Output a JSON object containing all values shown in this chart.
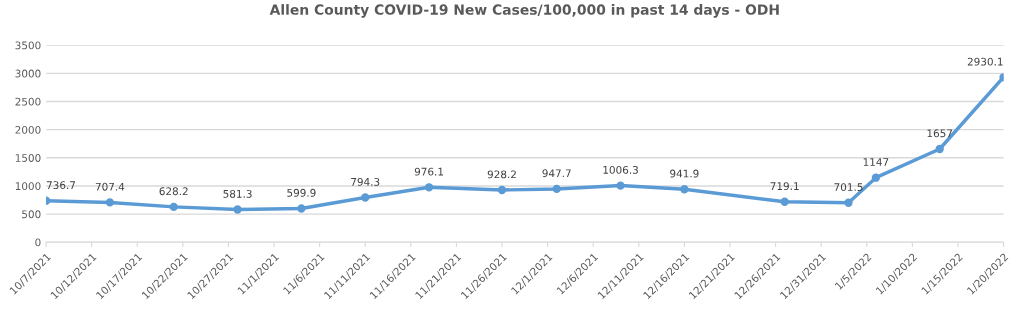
{
  "chart_data": {
    "type": "line",
    "title": "Allen County COVID-19 New Cases/100,000 in past 14 days - ODH",
    "x": [
      "2021-10-07",
      "2021-10-14",
      "2021-10-21",
      "2021-10-28",
      "2021-11-04",
      "2021-11-11",
      "2021-11-18",
      "2021-11-26",
      "2021-12-02",
      "2021-12-09",
      "2021-12-16",
      "2021-12-27",
      "2022-01-03",
      "2022-01-06",
      "2022-01-13",
      "2022-01-20"
    ],
    "series": [
      {
        "color": "#5b9bd5",
        "values": [
          736.7,
          707.4,
          628.2,
          581.3,
          599.9,
          794.3,
          976.1,
          928.2,
          947.7,
          1006.3,
          941.9,
          719.1,
          701.5,
          1147,
          1657,
          2930.1
        ]
      }
    ],
    "data_labels": true,
    "marker": "circle",
    "line_style": "solid",
    "grid": "y",
    "legend": false,
    "xlim": [
      "2021-10-07",
      "2022-01-20"
    ],
    "xticks": [
      {
        "value": "2021-10-07",
        "label": "10/7/2021"
      },
      {
        "value": "2021-10-12",
        "label": "10/12/2021"
      },
      {
        "value": "2021-10-17",
        "label": "10/17/2021"
      },
      {
        "value": "2021-10-22",
        "label": "10/22/2021"
      },
      {
        "value": "2021-10-27",
        "label": "10/27/2021"
      },
      {
        "value": "2021-11-01",
        "label": "11/1/2021"
      },
      {
        "value": "2021-11-06",
        "label": "11/6/2021"
      },
      {
        "value": "2021-11-11",
        "label": "11/11/2021"
      },
      {
        "value": "2021-11-16",
        "label": "11/16/2021"
      },
      {
        "value": "2021-11-21",
        "label": "11/21/2021"
      },
      {
        "value": "2021-11-26",
        "label": "11/26/2021"
      },
      {
        "value": "2021-12-01",
        "label": "12/1/2021"
      },
      {
        "value": "2021-12-06",
        "label": "12/6/2021"
      },
      {
        "value": "2021-12-11",
        "label": "12/11/2021"
      },
      {
        "value": "2021-12-16",
        "label": "12/16/2021"
      },
      {
        "value": "2021-12-21",
        "label": "12/21/2021"
      },
      {
        "value": "2021-12-26",
        "label": "12/26/2021"
      },
      {
        "value": "2021-12-31",
        "label": "12/31/2021"
      },
      {
        "value": "2022-01-05",
        "label": "1/5/2022"
      },
      {
        "value": "2022-01-10",
        "label": "1/10/2022"
      },
      {
        "value": "2022-01-15",
        "label": "1/15/2022"
      },
      {
        "value": "2022-01-20",
        "label": "1/20/2022"
      }
    ],
    "ylim": [
      0,
      3500
    ],
    "yticks": [
      0,
      500,
      1000,
      1500,
      2000,
      2500,
      3000,
      3500
    ]
  }
}
